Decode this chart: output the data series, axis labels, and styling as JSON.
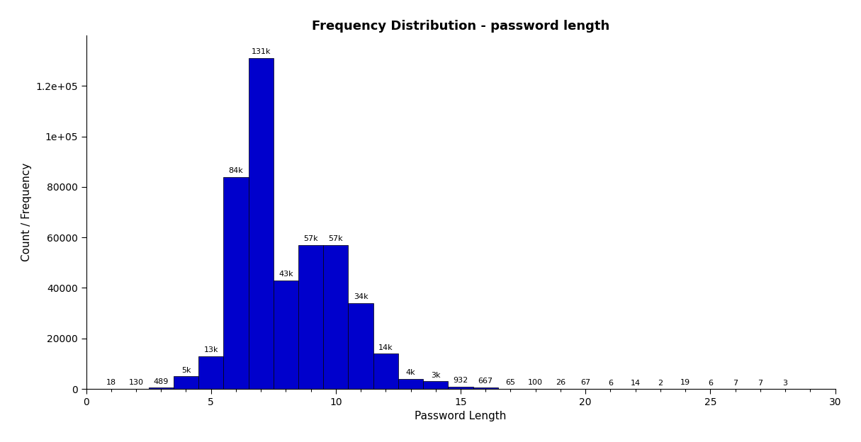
{
  "title": "Frequency Distribution - password length",
  "xlabel": "Password Length",
  "ylabel": "Count / Frequency",
  "bar_color": "#0000CC",
  "bar_edgecolor": "#000000",
  "xlim": [
    0,
    30
  ],
  "ylim": [
    0,
    140000
  ],
  "yticks": [
    0,
    20000,
    40000,
    60000,
    80000,
    100000,
    120000
  ],
  "ytick_labels": [
    "0",
    "20000",
    "40000",
    "60000",
    "80000",
    "1e+05",
    "1.2e+05"
  ],
  "xticks": [
    0,
    5,
    10,
    15,
    20,
    25,
    30
  ],
  "categories": [
    1,
    2,
    3,
    4,
    5,
    6,
    7,
    8,
    9,
    10,
    11,
    12,
    13,
    14,
    15,
    16,
    17,
    18,
    19,
    20,
    21,
    22,
    23,
    24,
    25,
    26,
    27,
    28,
    29
  ],
  "values": [
    18,
    130,
    489,
    5000,
    13000,
    84000,
    131000,
    43000,
    57000,
    57000,
    34000,
    14000,
    4000,
    3000,
    932,
    667,
    65,
    100,
    26,
    67,
    6,
    14,
    2,
    19,
    6,
    7,
    7,
    3,
    0
  ],
  "labels": [
    "18",
    "130",
    "489",
    "5k",
    "13k",
    "84k",
    "131k",
    "43k",
    "57k",
    "57k",
    "34k",
    "14k",
    "4k",
    "3k",
    "932",
    "667",
    "65",
    "100",
    "26",
    "67",
    "6",
    "14",
    "2",
    "19",
    "6",
    "7",
    "7",
    "3",
    ""
  ],
  "background_color": "#ffffff",
  "title_fontsize": 13,
  "label_fontsize": 11,
  "tick_fontsize": 10,
  "annotation_fontsize": 8,
  "figwidth": 12.15,
  "figheight": 6.24
}
